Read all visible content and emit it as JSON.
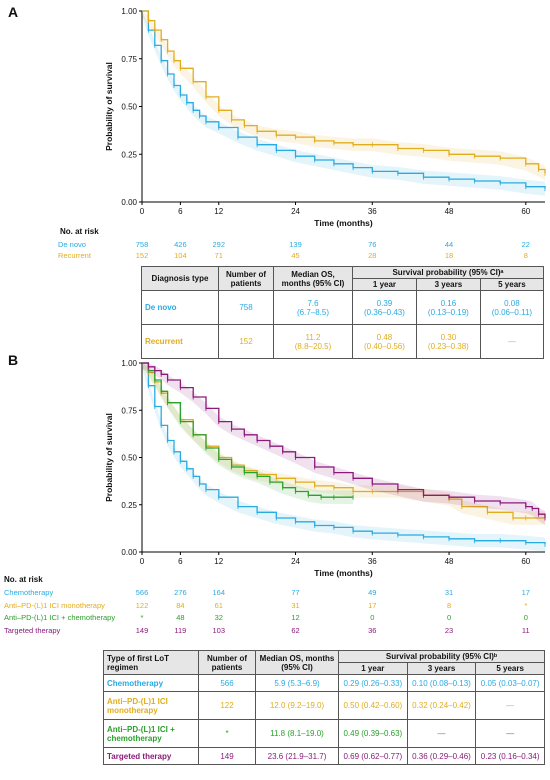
{
  "panels": [
    {
      "label": "A",
      "ylabel": "Probability of survival",
      "xlabel": "Time (months)",
      "risk_title": "No. at risk",
      "risk_times": [
        0,
        6,
        12,
        24,
        36,
        48,
        60
      ],
      "risk_rows": [
        {
          "name": "De novo",
          "color": "#29abe2",
          "values": [
            "758",
            "426",
            "292",
            "139",
            "76",
            "44",
            "22"
          ]
        },
        {
          "name": "Recurrent",
          "color": "#e0ad1f",
          "values": [
            "152",
            "104",
            "71",
            "45",
            "28",
            "18",
            "8"
          ]
        }
      ],
      "table": {
        "headers": [
          "Diagnosis type",
          "Number of patients",
          "Median OS, months (95% CI)",
          "Survival probability (95% CI)ᵃ"
        ],
        "subheaders": [
          "1 year",
          "3 years",
          "5 years"
        ],
        "rows": [
          {
            "name": "De novo",
            "color": "#29abe2",
            "n": "758",
            "median": "7.6",
            "median_ci": "(6.7–8.5)",
            "y1": "0.39",
            "y1_ci": "(0.36–0.43)",
            "y3": "0.16",
            "y3_ci": "(0.13–0.19)",
            "y5": "0.08",
            "y5_ci": "(0.06–0.11)"
          },
          {
            "name": "Recurrent",
            "color": "#e0ad1f",
            "n": "152",
            "median": "11.2",
            "median_ci": "(8.8–20.5)",
            "y1": "0.48",
            "y1_ci": "(0.40–0.56)",
            "y3": "0.30",
            "y3_ci": "(0.23–0.38)",
            "y5": "—",
            "y5_ci": ""
          }
        ]
      }
    },
    {
      "label": "B",
      "ylabel": "Probability of survival",
      "xlabel": "Time (months)",
      "risk_title": "No. at risk",
      "risk_times": [
        0,
        6,
        12,
        24,
        36,
        48,
        60
      ],
      "risk_rows": [
        {
          "name": "Chemotherapy",
          "color": "#29abe2",
          "values": [
            "566",
            "276",
            "164",
            "77",
            "49",
            "31",
            "17"
          ]
        },
        {
          "name": "Anti–PD-(L)1 ICI monotherapy",
          "color": "#e0ad1f",
          "values": [
            "122",
            "84",
            "61",
            "31",
            "17",
            "8",
            "*"
          ]
        },
        {
          "name": "Anti–PD-(L)1 ICI + chemotherapy",
          "color": "#2ca02c",
          "values": [
            "*",
            "48",
            "32",
            "12",
            "0",
            "0",
            "0"
          ]
        },
        {
          "name": "Targeted therapy",
          "color": "#8b1a7a",
          "values": [
            "149",
            "119",
            "103",
            "62",
            "36",
            "23",
            "11"
          ]
        }
      ],
      "table": {
        "headers": [
          "Type of first LoT regimen",
          "Number of patients",
          "Median OS, months (95% CI)",
          "Survival probability (95% CI)ᵇ"
        ],
        "subheaders": [
          "1 year",
          "3 years",
          "5 years"
        ],
        "rows": [
          {
            "name": "Chemotherapy",
            "color": "#29abe2",
            "n": "566",
            "median": "5.9 (5.3–6.9)",
            "y1": "0.29 (0.26–0.33)",
            "y3": "0.10 (0.08–0.13)",
            "y5": "0.05 (0.03–0.07)"
          },
          {
            "name": "Anti–PD-(L)1 ICI monotherapy",
            "color": "#e0ad1f",
            "n": "122",
            "median": "12.0 (9.2–19.0)",
            "y1": "0.50 (0.42–0.60)",
            "y3": "0.32 (0.24–0.42)",
            "y5": "—"
          },
          {
            "name": "Anti–PD-(L)1 ICI + chemotherapy",
            "color": "#2ca02c",
            "n": "*",
            "median": "11.8 (8.1–19.0)",
            "y1": "0.49 (0.39–0.63)",
            "y3": "—",
            "y5": "—"
          },
          {
            "name": "Targeted therapy",
            "color": "#8b1a7a",
            "n": "149",
            "median": "23.6 (21.9–31.7)",
            "y1": "0.69 (0.62–0.77)",
            "y3": "0.36 (0.29–0.46)",
            "y5": "0.23 (0.16–0.34)"
          }
        ]
      }
    }
  ],
  "chart_data": [
    {
      "type": "line",
      "xlabel": "Time (months)",
      "ylabel": "Probability of survival",
      "xlim": [
        0,
        63
      ],
      "ylim": [
        0,
        1
      ],
      "xticks": [
        0,
        6,
        12,
        24,
        36,
        48,
        60
      ],
      "yticks": [
        0.0,
        0.25,
        0.5,
        0.75,
        1.0
      ],
      "ytick_labels": [
        "0.00",
        "0.25",
        "0.50",
        "0.75",
        "1.00"
      ],
      "series": [
        {
          "name": "De novo",
          "color": "#29abe2",
          "x": [
            0,
            1,
            2,
            3,
            4,
            5,
            6,
            7,
            8,
            9,
            10,
            12,
            15,
            18,
            21,
            24,
            27,
            30,
            33,
            36,
            40,
            44,
            48,
            52,
            56,
            60,
            63
          ],
          "y": [
            1.0,
            0.9,
            0.82,
            0.74,
            0.67,
            0.61,
            0.56,
            0.52,
            0.48,
            0.45,
            0.42,
            0.39,
            0.34,
            0.3,
            0.27,
            0.24,
            0.22,
            0.2,
            0.18,
            0.16,
            0.15,
            0.13,
            0.12,
            0.11,
            0.1,
            0.08,
            0.07
          ]
        },
        {
          "name": "Recurrent",
          "color": "#e0ad1f",
          "x": [
            0,
            1,
            2,
            3,
            4,
            5,
            6,
            8,
            10,
            12,
            14,
            16,
            18,
            21,
            24,
            27,
            30,
            33,
            36,
            40,
            44,
            48,
            52,
            56,
            60,
            62,
            63
          ],
          "y": [
            1.0,
            0.95,
            0.9,
            0.85,
            0.79,
            0.74,
            0.7,
            0.63,
            0.55,
            0.48,
            0.43,
            0.4,
            0.37,
            0.35,
            0.34,
            0.32,
            0.31,
            0.3,
            0.3,
            0.28,
            0.27,
            0.25,
            0.24,
            0.23,
            0.2,
            0.17,
            0.15
          ]
        }
      ]
    },
    {
      "type": "line",
      "xlabel": "Time (months)",
      "ylabel": "Probability of survival",
      "xlim": [
        0,
        63
      ],
      "ylim": [
        0,
        1
      ],
      "xticks": [
        0,
        6,
        12,
        24,
        36,
        48,
        60
      ],
      "yticks": [
        0.0,
        0.25,
        0.5,
        0.75,
        1.0
      ],
      "ytick_labels": [
        "0.00",
        "0.25",
        "0.50",
        "0.75",
        "1.00"
      ],
      "series": [
        {
          "name": "Chemotherapy",
          "color": "#29abe2",
          "x": [
            0,
            1,
            2,
            3,
            4,
            5,
            6,
            7,
            8,
            9,
            10,
            12,
            15,
            18,
            21,
            24,
            27,
            30,
            33,
            36,
            40,
            44,
            48,
            52,
            56,
            60,
            63
          ],
          "y": [
            1.0,
            0.88,
            0.77,
            0.67,
            0.59,
            0.53,
            0.48,
            0.44,
            0.4,
            0.36,
            0.33,
            0.29,
            0.24,
            0.21,
            0.18,
            0.16,
            0.14,
            0.13,
            0.11,
            0.1,
            0.09,
            0.08,
            0.07,
            0.06,
            0.06,
            0.05,
            0.04
          ]
        },
        {
          "name": "Anti–PD-(L)1 ICI monotherapy",
          "color": "#e0ad1f",
          "x": [
            0,
            1,
            2,
            3,
            4,
            6,
            8,
            10,
            12,
            14,
            16,
            18,
            21,
            24,
            27,
            30,
            33,
            36,
            40,
            44,
            48,
            50,
            54,
            58,
            60,
            63
          ],
          "y": [
            1.0,
            0.95,
            0.9,
            0.84,
            0.79,
            0.7,
            0.62,
            0.56,
            0.5,
            0.46,
            0.43,
            0.41,
            0.39,
            0.37,
            0.35,
            0.34,
            0.32,
            0.32,
            0.32,
            0.3,
            0.28,
            0.24,
            0.21,
            0.18,
            0.18,
            0.18
          ]
        },
        {
          "name": "Anti–PD-(L)1 ICI + chemotherapy",
          "color": "#2ca02c",
          "x": [
            0,
            1,
            2,
            3,
            4,
            6,
            8,
            10,
            12,
            14,
            16,
            18,
            20,
            22,
            24,
            26,
            28,
            30,
            33
          ],
          "y": [
            1.0,
            0.96,
            0.91,
            0.85,
            0.79,
            0.69,
            0.62,
            0.55,
            0.49,
            0.45,
            0.42,
            0.4,
            0.37,
            0.34,
            0.32,
            0.3,
            0.29,
            0.29,
            0.29
          ]
        },
        {
          "name": "Targeted therapy",
          "color": "#8b1a7a",
          "x": [
            0,
            1,
            2,
            3,
            4,
            6,
            8,
            10,
            12,
            14,
            16,
            18,
            20,
            22,
            24,
            27,
            30,
            33,
            36,
            40,
            44,
            48,
            52,
            56,
            60,
            61,
            62,
            63
          ],
          "y": [
            1.0,
            0.98,
            0.96,
            0.94,
            0.91,
            0.87,
            0.82,
            0.76,
            0.69,
            0.65,
            0.62,
            0.59,
            0.56,
            0.53,
            0.5,
            0.45,
            0.42,
            0.39,
            0.36,
            0.33,
            0.3,
            0.29,
            0.27,
            0.26,
            0.24,
            0.23,
            0.2,
            0.18
          ]
        }
      ]
    }
  ]
}
